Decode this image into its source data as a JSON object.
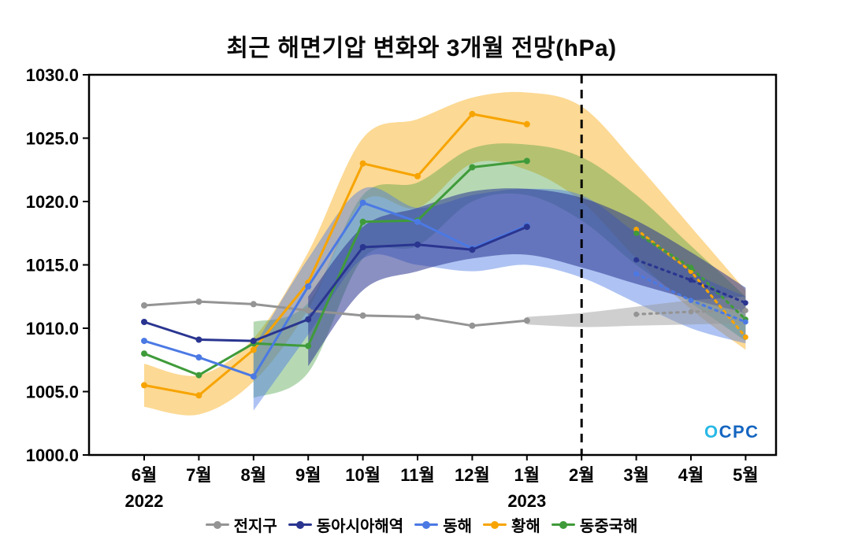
{
  "title": "최근 해면기압 변화와 3개월 전망(hPa)",
  "logo": {
    "text": "OCPC"
  },
  "chart_data": {
    "type": "line",
    "title": "최근 해면기압 변화와 3개월 전망(hPa)",
    "unit": "hPa",
    "ylim": [
      1000,
      1030
    ],
    "yticks": [
      1000,
      1005,
      1010,
      1015,
      1020,
      1025,
      1030
    ],
    "categories": [
      "6월",
      "7월",
      "8월",
      "9월",
      "10월",
      "11월",
      "12월",
      "1월",
      "2월",
      "3월",
      "4월",
      "5월"
    ],
    "year_labels": [
      {
        "index": 0,
        "text": "2022"
      },
      {
        "index": 7,
        "text": "2023"
      }
    ],
    "divider_index": 8,
    "forecast_start_index": 9,
    "legend_position": "bottom",
    "grid": false,
    "series": [
      {
        "name": "전지구",
        "color": "#949494",
        "band_opacity": 0.45,
        "observed": [
          1011.8,
          1012.1,
          1011.9,
          1011.4,
          1011.0,
          1010.9,
          1010.2,
          1010.6
        ],
        "forecast": [
          1011.1,
          1011.3,
          1011.4
        ],
        "band_start": 7,
        "band_upper": [
          1010.9,
          1011.2,
          1011.7,
          1012.2,
          1012.5
        ],
        "band_lower": [
          1010.3,
          1010.1,
          1010.2,
          1010.3,
          1010.4
        ]
      },
      {
        "name": "동아시아해역",
        "color": "#2a3590",
        "band_opacity": 0.55,
        "observed": [
          1010.5,
          1009.1,
          1009.0,
          1010.7,
          1016.4,
          1016.6,
          1016.2,
          1018.0
        ],
        "forecast": [
          1015.4,
          1013.8,
          1012.0
        ],
        "band_start": 3,
        "band_upper": [
          1012.5,
          1018.0,
          1019.5,
          1020.8,
          1021.0,
          1020.3,
          1018.5,
          1016.0,
          1013.2
        ],
        "band_lower": [
          1007.0,
          1013.0,
          1014.5,
          1015.5,
          1015.8,
          1014.8,
          1013.5,
          1012.3,
          1011.2
        ]
      },
      {
        "name": "동해",
        "color": "#4b79e4",
        "band_opacity": 0.45,
        "observed": [
          1009.0,
          1007.7,
          1006.2,
          1013.3,
          1019.9,
          1018.4,
          1016.3,
          1018.1
        ],
        "forecast": [
          1014.3,
          1012.2,
          1010.5
        ],
        "band_start": 2,
        "band_upper": [
          1008.5,
          1015.5,
          1021.0,
          1019.5,
          1020.5,
          1021.0,
          1020.5,
          1017.5,
          1014.5,
          1012.5
        ],
        "band_lower": [
          1003.5,
          1009.5,
          1015.5,
          1015.0,
          1014.5,
          1015.0,
          1014.0,
          1012.0,
          1010.0,
          1008.8
        ]
      },
      {
        "name": "황해",
        "color": "#f7a400",
        "band_opacity": 0.42,
        "observed": [
          1005.5,
          1004.7,
          1008.3,
          1013.6,
          1023.0,
          1022.0,
          1026.9,
          1026.1
        ],
        "forecast": [
          1017.8,
          1014.5,
          1009.3
        ],
        "band_start": 0,
        "band_upper": [
          1007.2,
          1006.3,
          1009.2,
          1016.0,
          1025.0,
          1026.5,
          1028.2,
          1028.6,
          1027.5,
          1023.0,
          1018.0,
          1013.0
        ],
        "band_lower": [
          1003.8,
          1003.2,
          1005.8,
          1011.5,
          1020.0,
          1019.5,
          1023.0,
          1022.5,
          1020.0,
          1015.5,
          1011.5,
          1008.3
        ]
      },
      {
        "name": "동중국해",
        "color": "#3f9b3a",
        "band_opacity": 0.38,
        "observed": [
          1008.0,
          1006.3,
          1008.8,
          1008.6,
          1018.4,
          1018.5,
          1022.7,
          1023.2
        ],
        "forecast": [
          1017.5,
          1014.8,
          1010.7
        ],
        "band_start": 2,
        "band_upper": [
          1010.5,
          1012.0,
          1020.5,
          1021.5,
          1024.2,
          1024.5,
          1023.5,
          1020.5,
          1016.5,
          1012.5
        ],
        "band_lower": [
          1004.5,
          1006.5,
          1015.5,
          1016.5,
          1020.0,
          1020.5,
          1018.5,
          1015.0,
          1012.0,
          1009.0
        ]
      }
    ]
  }
}
